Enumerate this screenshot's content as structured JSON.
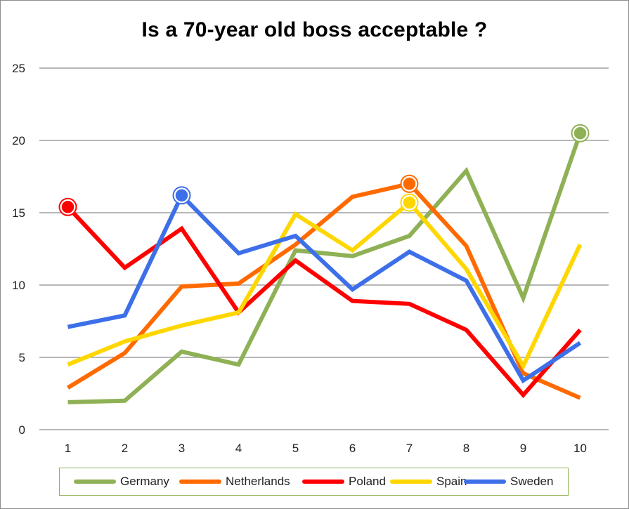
{
  "chart_data": {
    "type": "line",
    "title": "Is a 70-year old boss acceptable ?",
    "xlabel": "",
    "ylabel": "",
    "x": [
      1,
      2,
      3,
      4,
      5,
      6,
      7,
      8,
      9,
      10
    ],
    "x_tick_labels": [
      "1",
      "2",
      "3",
      "4",
      "5",
      "6",
      "7",
      "8",
      "9",
      "10"
    ],
    "ylim": [
      0,
      25
    ],
    "y_ticks": [
      0,
      5,
      10,
      15,
      20,
      25
    ],
    "grid": "horizontal",
    "legend": "bottom",
    "series": [
      {
        "name": "Germany",
        "color": "#8fb155",
        "values": [
          1.9,
          2.0,
          5.4,
          4.5,
          12.4,
          12.0,
          13.4,
          17.9,
          9.1,
          20.5
        ],
        "highlight": [
          9
        ]
      },
      {
        "name": "Netherlands",
        "color": "#ff6a00",
        "values": [
          2.9,
          5.3,
          9.9,
          10.1,
          12.8,
          16.1,
          17.0,
          12.7,
          3.9,
          2.2
        ],
        "highlight": [
          6
        ]
      },
      {
        "name": "Poland",
        "color": "#ff0000",
        "values": [
          15.4,
          11.2,
          13.9,
          8.1,
          11.7,
          8.9,
          8.7,
          6.9,
          2.4,
          6.9
        ],
        "highlight": [
          0
        ]
      },
      {
        "name": "Spain",
        "color": "#ffd700",
        "values": [
          4.5,
          6.1,
          7.2,
          8.1,
          14.9,
          12.4,
          15.7,
          11.1,
          4.4,
          12.8
        ],
        "highlight": [
          6
        ]
      },
      {
        "name": "Sweden",
        "color": "#3d6fe8",
        "values": [
          7.1,
          7.9,
          16.2,
          12.2,
          13.4,
          9.7,
          12.3,
          10.3,
          3.4,
          6.0
        ],
        "highlight": [
          2
        ]
      }
    ]
  }
}
